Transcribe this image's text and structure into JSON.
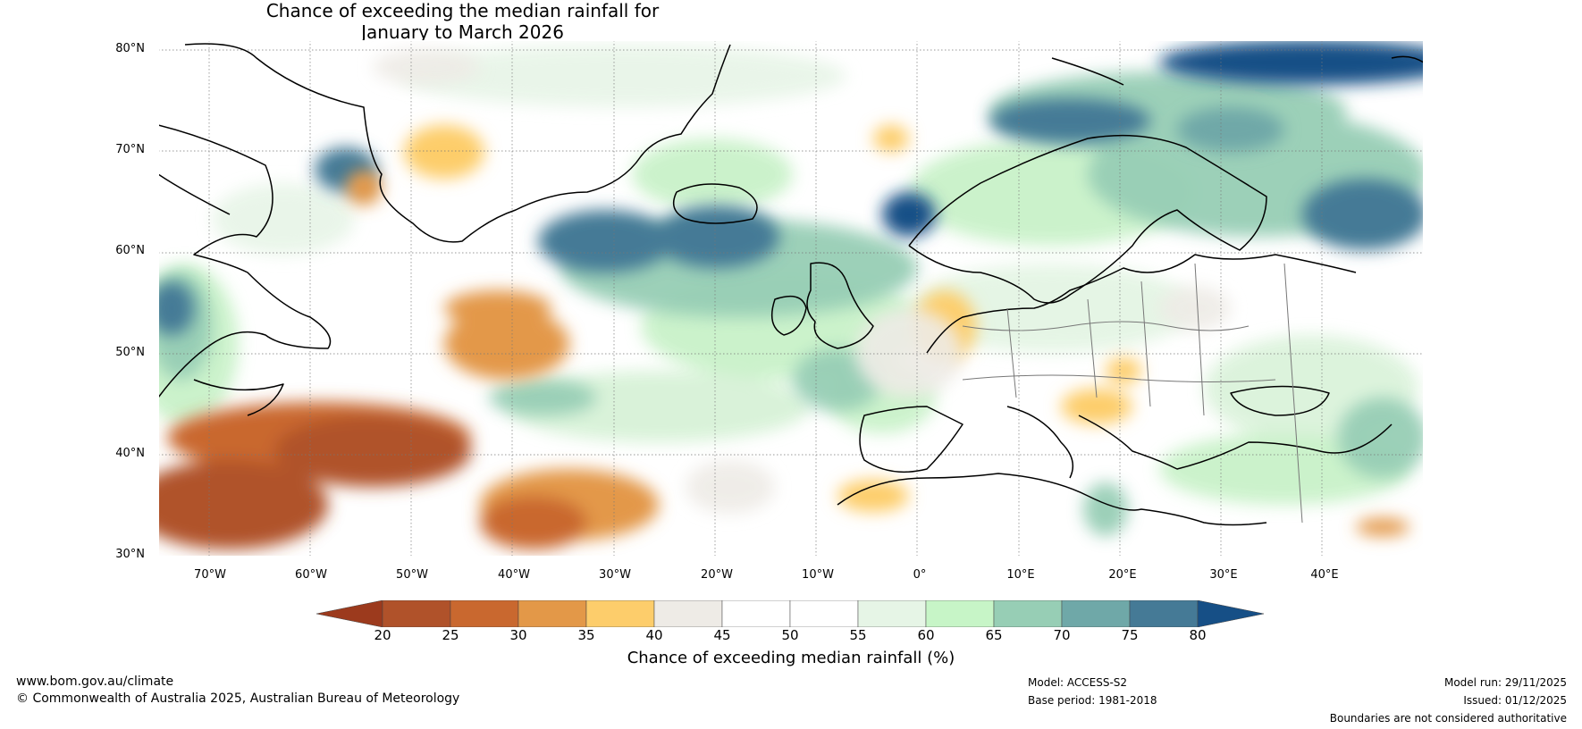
{
  "title": {
    "line1": "Chance of exceeding the median rainfall for",
    "line2": "January to March 2026"
  },
  "map": {
    "lat_labels": [
      "80°N",
      "70°N",
      "60°N",
      "50°N",
      "40°N",
      "30°N"
    ],
    "lat_values": [
      80,
      70,
      60,
      50,
      40,
      30
    ],
    "lon_labels": [
      "70°W",
      "60°W",
      "50°W",
      "40°W",
      "30°W",
      "20°W",
      "10°W",
      "0°",
      "10°E",
      "20°E",
      "30°E",
      "40°E"
    ],
    "lon_values": [
      -70,
      -60,
      -50,
      -40,
      -30,
      -20,
      -10,
      0,
      10,
      20,
      30,
      40
    ],
    "extent": {
      "lon_min": -75,
      "lon_max": 50,
      "lat_min": 30,
      "lat_max": 81
    },
    "legend_tiles": [
      {
        "name": "greenland-pos",
        "lon": [
          -55,
          -40
        ],
        "lat": [
          66,
          72
        ],
        "value": 37
      },
      {
        "name": "atlantic-west-pos",
        "lon": [
          -50,
          -35
        ],
        "lat": [
          43,
          54
        ],
        "value": 33
      },
      {
        "name": "nw-atlantic-dry",
        "lon": [
          -75,
          -42
        ],
        "lat": [
          30,
          43
        ],
        "value": 27
      },
      {
        "name": "mid-atlantic-dry",
        "lon": [
          -40,
          -20
        ],
        "lat": [
          30,
          38
        ],
        "value": 32
      },
      {
        "name": "north-atlantic-wet",
        "lon": [
          -37,
          -10
        ],
        "lat": [
          55,
          66
        ],
        "value": 72
      },
      {
        "name": "scandinavia-wet",
        "lon": [
          10,
          50
        ],
        "lat": [
          60,
          80
        ],
        "value": 70
      },
      {
        "name": "arctic-wet",
        "lon": [
          10,
          50
        ],
        "lat": [
          74,
          81
        ],
        "value": 78
      }
    ]
  },
  "colorbar": {
    "ticks": [
      "20",
      "25",
      "30",
      "35",
      "40",
      "45",
      "50",
      "55",
      "60",
      "65",
      "70",
      "75",
      "80"
    ],
    "colors": [
      "#b0522a",
      "#c9682f",
      "#e39848",
      "#fdcd6b",
      "#eeebe6",
      "#ffffff",
      "#ffffff",
      "#e6f5e6",
      "#c7f5c7",
      "#97ceb5",
      "#6fa8a8",
      "#457a96"
    ],
    "low_color": "#9c3a1d",
    "high_color": "#164f86",
    "label": "Chance of exceeding median rainfall (%)"
  },
  "footer": {
    "url": "www.bom.gov.au/climate",
    "copyright": "© Commonwealth of Australia 2025, Australian Bureau of Meteorology",
    "model": "Model: ACCESS-S2",
    "base_period": "Base period: 1981-2018",
    "model_run": "Model run: 29/11/2025",
    "issued": "Issued: 01/12/2025",
    "disclaimer": "Boundaries are not considered authoritative"
  }
}
